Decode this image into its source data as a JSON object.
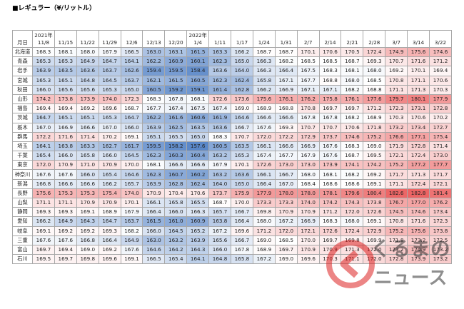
{
  "title": "■レギュラー（¥/リットル）",
  "table": {
    "corner": "月日",
    "columns": [
      {
        "year": "2021年",
        "date": "11/8"
      },
      {
        "date": "11/15"
      },
      {
        "date": "11/22"
      },
      {
        "date": "11/29"
      },
      {
        "date": "12/6"
      },
      {
        "date": "12/13"
      },
      {
        "date": "12/20"
      },
      {
        "year": "2022年",
        "date": "1/4"
      },
      {
        "date": "1/11"
      },
      {
        "date": "1/17"
      },
      {
        "date": "1/24"
      },
      {
        "date": "1/31"
      },
      {
        "date": "2/7"
      },
      {
        "date": "2/14"
      },
      {
        "date": "2/21"
      },
      {
        "date": "2/28"
      },
      {
        "date": "3/7"
      },
      {
        "date": "3/14"
      },
      {
        "date": "3/22"
      }
    ],
    "rows": [
      {
        "name": "北海道",
        "values": [
          168.3,
          168.1,
          168.0,
          167.9,
          166.5,
          163.0,
          163.1,
          161.5,
          163.3,
          166.2,
          168.7,
          168.7,
          170.1,
          170.6,
          170.5,
          172.4,
          174.9,
          175.6,
          174.6
        ]
      },
      {
        "name": "青森",
        "values": [
          165.3,
          165.3,
          164.9,
          164.7,
          164.1,
          162.2,
          160.9,
          160.1,
          162.3,
          165.0,
          166.3,
          168.2,
          168.5,
          168.5,
          168.7,
          169.3,
          170.7,
          171.6,
          171.2
        ]
      },
      {
        "name": "岩手",
        "values": [
          163.9,
          163.5,
          163.6,
          163.7,
          162.6,
          159.4,
          159.5,
          158.4,
          163.6,
          164.0,
          166.3,
          166.4,
          167.5,
          168.3,
          168.1,
          168.0,
          169.2,
          170.1,
          169.4
        ]
      },
      {
        "name": "宮城",
        "values": [
          165.3,
          165.1,
          164.8,
          164.5,
          163.7,
          162.1,
          161.5,
          160.5,
          162.3,
          162.4,
          165.8,
          167.1,
          167.7,
          168.8,
          168.0,
          168.5,
          170.8,
          171.1,
          170.6
        ]
      },
      {
        "name": "秋田",
        "values": [
          166.0,
          165.6,
          165.6,
          165.3,
          165.0,
          160.5,
          159.2,
          159.1,
          161.4,
          162.8,
          166.2,
          166.9,
          167.1,
          167.1,
          168.2,
          168.8,
          171.1,
          171.3,
          170.3
        ]
      },
      {
        "name": "山形",
        "values": [
          174.2,
          173.8,
          173.9,
          174.0,
          172.3,
          168.3,
          167.8,
          168.1,
          172.6,
          173.6,
          175.6,
          176.1,
          176.2,
          175.8,
          176.1,
          177.6,
          179.7,
          180.1,
          177.9
        ]
      },
      {
        "name": "福島",
        "values": [
          169.4,
          169.4,
          169.2,
          169.6,
          168.7,
          167.7,
          167.4,
          167.5,
          167.4,
          169.0,
          168.9,
          168.8,
          170.8,
          169.7,
          169.7,
          171.2,
          172.3,
          173.1,
          172.8
        ]
      },
      {
        "name": "茨城",
        "values": [
          164.7,
          165.1,
          165.1,
          165.3,
          164.7,
          162.2,
          161.6,
          160.6,
          161.9,
          164.6,
          166.6,
          166.6,
          167.8,
          167.8,
          168.2,
          168.9,
          170.3,
          170.6,
          170.2
        ]
      },
      {
        "name": "栃木",
        "values": [
          167.0,
          166.9,
          166.6,
          167.0,
          166.0,
          163.9,
          162.5,
          163.5,
          163.6,
          166.7,
          167.6,
          169.3,
          170.7,
          170.7,
          170.6,
          171.8,
          173.2,
          173.4,
          172.7
        ]
      },
      {
        "name": "群馬",
        "values": [
          172.2,
          171.6,
          171.4,
          170.2,
          169.1,
          165.1,
          165.5,
          165.0,
          168.3,
          170.7,
          172.0,
          172.2,
          172.9,
          173.7,
          174.6,
          175.2,
          176.6,
          177.1,
          175.4
        ]
      },
      {
        "name": "埼玉",
        "values": [
          164.1,
          163.8,
          163.3,
          162.7,
          161.7,
          159.5,
          158.2,
          157.6,
          160.5,
          163.5,
          166.1,
          166.6,
          166.9,
          167.6,
          168.3,
          169.0,
          171.9,
          172.8,
          171.4
        ]
      },
      {
        "name": "千葉",
        "values": [
          165.4,
          166.0,
          165.8,
          166.0,
          164.5,
          162.3,
          160.3,
          160.4,
          163.2,
          165.3,
          167.4,
          167.7,
          167.9,
          167.6,
          168.7,
          169.5,
          172.1,
          172.4,
          173.0
        ]
      },
      {
        "name": "東京",
        "values": [
          172.0,
          170.9,
          171.0,
          170.9,
          170.0,
          168.1,
          166.6,
          166.6,
          167.9,
          170.1,
          172.6,
          173.0,
          173.0,
          173.9,
          174.1,
          174.2,
          175.2,
          177.2,
          177.7
        ]
      },
      {
        "name": "神奈川",
        "values": [
          167.6,
          167.6,
          166.0,
          165.4,
          164.6,
          162.3,
          160.7,
          160.2,
          163.2,
          163.6,
          166.1,
          166.7,
          168.0,
          168.1,
          168.2,
          169.2,
          171.7,
          171.3,
          171.7
        ]
      },
      {
        "name": "新潟",
        "values": [
          166.8,
          166.6,
          166.6,
          166.2,
          165.7,
          163.9,
          162.8,
          162.4,
          164.0,
          165.0,
          166.4,
          167.0,
          168.4,
          168.6,
          168.6,
          169.1,
          171.1,
          172.4,
          172.1
        ]
      },
      {
        "name": "長野",
        "values": [
          175.6,
          175.3,
          175.3,
          175.4,
          174.0,
          170.9,
          170.4,
          170.6,
          173.7,
          175.9,
          177.9,
          178.0,
          178.0,
          178.1,
          179.6,
          180.4,
          182.6,
          182.8,
          181.4
        ]
      },
      {
        "name": "山梨",
        "values": [
          171.1,
          171.1,
          170.9,
          170.9,
          170.1,
          166.1,
          165.8,
          165.5,
          168.7,
          170.0,
          173.3,
          173.3,
          174.0,
          174.2,
          174.3,
          173.8,
          176.7,
          177.0,
          176.2
        ]
      },
      {
        "name": "静岡",
        "values": [
          169.3,
          169.3,
          169.1,
          168.9,
          167.9,
          166.4,
          166.0,
          166.3,
          165.7,
          166.7,
          169.8,
          170.9,
          170.9,
          171.2,
          172.0,
          172.6,
          174.5,
          174.6,
          173.4
        ]
      },
      {
        "name": "愛知",
        "values": [
          166.2,
          164.9,
          164.3,
          164.7,
          163.7,
          161.5,
          161.0,
          160.9,
          163.8,
          166.4,
          168.0,
          167.2,
          166.9,
          168.3,
          168.0,
          169.1,
          170.8,
          171.6,
          172.3
        ]
      },
      {
        "name": "岐阜",
        "values": [
          169.1,
          169.2,
          169.2,
          169.3,
          168.2,
          166.0,
          164.5,
          165.2,
          167.2,
          169.6,
          171.2,
          172.0,
          172.1,
          172.6,
          172.4,
          172.9,
          175.2,
          175.6,
          173.8
        ]
      },
      {
        "name": "三重",
        "values": [
          167.6,
          167.6,
          166.8,
          166.4,
          164.9,
          163.0,
          163.2,
          163.9,
          165.6,
          166.7,
          169.0,
          168.5,
          170.0,
          169.7,
          169.8,
          169.9,
          171.8,
          173.2,
          172.5
        ]
      },
      {
        "name": "富山",
        "values": [
          169.7,
          169.4,
          169.0,
          169.2,
          167.6,
          164.6,
          164.2,
          164.3,
          166.0,
          167.8,
          168.9,
          169.7,
          170.9,
          170.9,
          171.3,
          172.0,
          173.2,
          174.9,
          173.2
        ]
      },
      {
        "name": "石川",
        "values": [
          169.5,
          169.7,
          169.8,
          169.6,
          169.1,
          166.5,
          165.4,
          164.1,
          164.8,
          165.8,
          167.2,
          169.0,
          169.6,
          170.3,
          171.1,
          172.0,
          172.8,
          173.9,
          173.2
        ]
      }
    ]
  },
  "watermark": {
    "top": "くるまの",
    "bottom": "ニュース"
  }
}
